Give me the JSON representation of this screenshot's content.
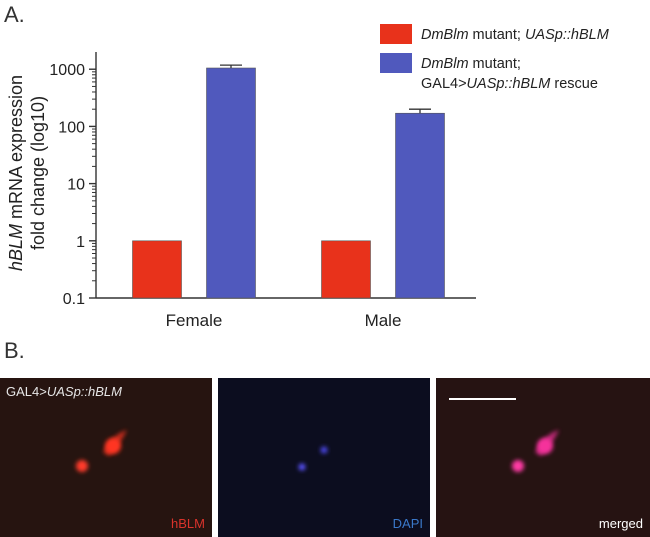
{
  "panel_a_label": "A.",
  "panel_b_label": "B.",
  "chart_data": {
    "type": "bar",
    "scale": "log",
    "ylim": [
      0.1,
      2000
    ],
    "ylabel_italic": "hBLM",
    "ylabel_rest": " mRNA expression",
    "ylabel_line2": "fold change (log10)",
    "yticks": [
      {
        "value": 0.1,
        "label": "0.1"
      },
      {
        "value": 1,
        "label": "1"
      },
      {
        "value": 10,
        "label": "10"
      },
      {
        "value": 100,
        "label": "100"
      },
      {
        "value": 1000,
        "label": "1000"
      }
    ],
    "categories": [
      "Female",
      "Male"
    ],
    "legend_position": "top-right",
    "series": [
      {
        "color": "#e8321b",
        "legend_italic": "DmBlm",
        "legend_text": " mutant; ",
        "legend_italic2": "UASp::hBLM",
        "values": [
          1,
          1
        ],
        "errors": [
          0,
          0
        ]
      },
      {
        "color": "#5059bd",
        "legend_italic": "DmBlm",
        "legend_text": " mutant;",
        "legend_line2_prefix": "GAL4>",
        "legend_line2_italic": "UASp::hBLM",
        "legend_line2_suffix": " rescue",
        "values": [
          1050,
          170
        ],
        "errors": [
          130,
          30
        ]
      }
    ]
  },
  "micrographs": {
    "title_prefix": "GAL4>",
    "title_italic": "UASp::hBLM",
    "panels": [
      {
        "label": "hBLM",
        "label_color": "#d9332b",
        "background": "#261410"
      },
      {
        "label": "DAPI",
        "label_color": "#3a78c9",
        "background": "#0c0d1f"
      },
      {
        "label": "merged",
        "label_color": "#ffffff",
        "background": "#261312"
      }
    ]
  }
}
